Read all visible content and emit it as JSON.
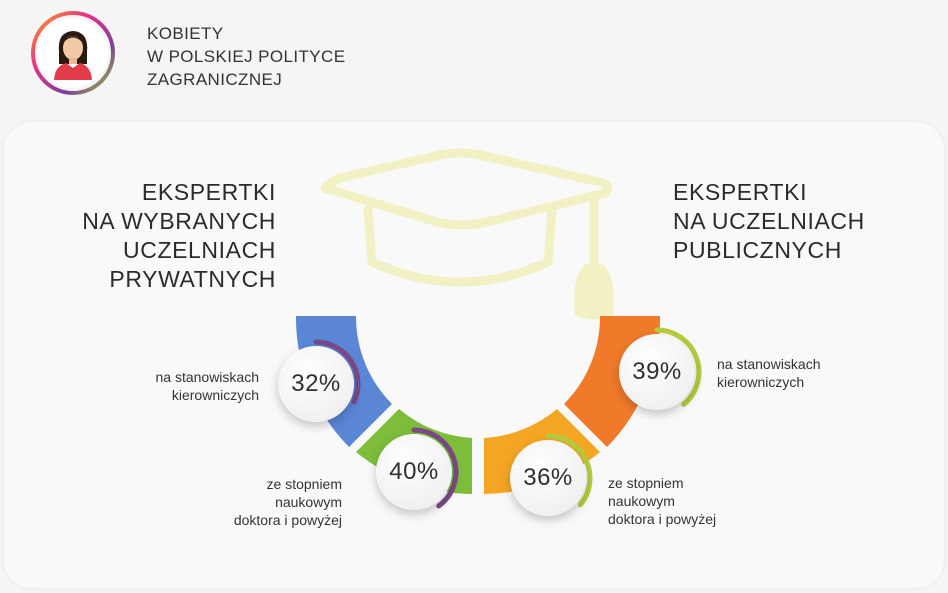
{
  "header": {
    "title_lines": [
      "KOBIETY",
      "W POLSKIEJ POLITYCE",
      "ZAGRANICZNEJ"
    ],
    "icon": "woman-avatar-icon"
  },
  "left": {
    "heading_lines": [
      "EKSPERTKI",
      "NA WYBRANYCH",
      "UCZELNIACH",
      "PRYWATNYCH"
    ],
    "items": [
      {
        "value": "32%",
        "label_lines": [
          "na stanowiskach",
          "kierowniczych"
        ],
        "fraction": 0.32,
        "color": "#5b86d6"
      },
      {
        "value": "40%",
        "label_lines": [
          "ze stopniem",
          "naukowym",
          "doktora i powyżej"
        ],
        "fraction": 0.4,
        "color": "#7dbd3a"
      }
    ]
  },
  "right": {
    "heading_lines": [
      "EKSPERTKI",
      "NA UCZELNIACH",
      "PUBLICZNYCH"
    ],
    "items": [
      {
        "value": "39%",
        "label_lines": [
          "na stanowiskach",
          "kierowniczych"
        ],
        "fraction": 0.39,
        "color": "#f07a2a"
      },
      {
        "value": "36%",
        "label_lines": [
          "ze stopniem",
          "naukowym",
          "doktora i powyżej"
        ],
        "fraction": 0.36,
        "color": "#f5a524"
      }
    ]
  },
  "colors": {
    "cap": "#f2f1c4",
    "progress_left": "#7b4a8a",
    "progress_right": "#b6cc3c"
  }
}
